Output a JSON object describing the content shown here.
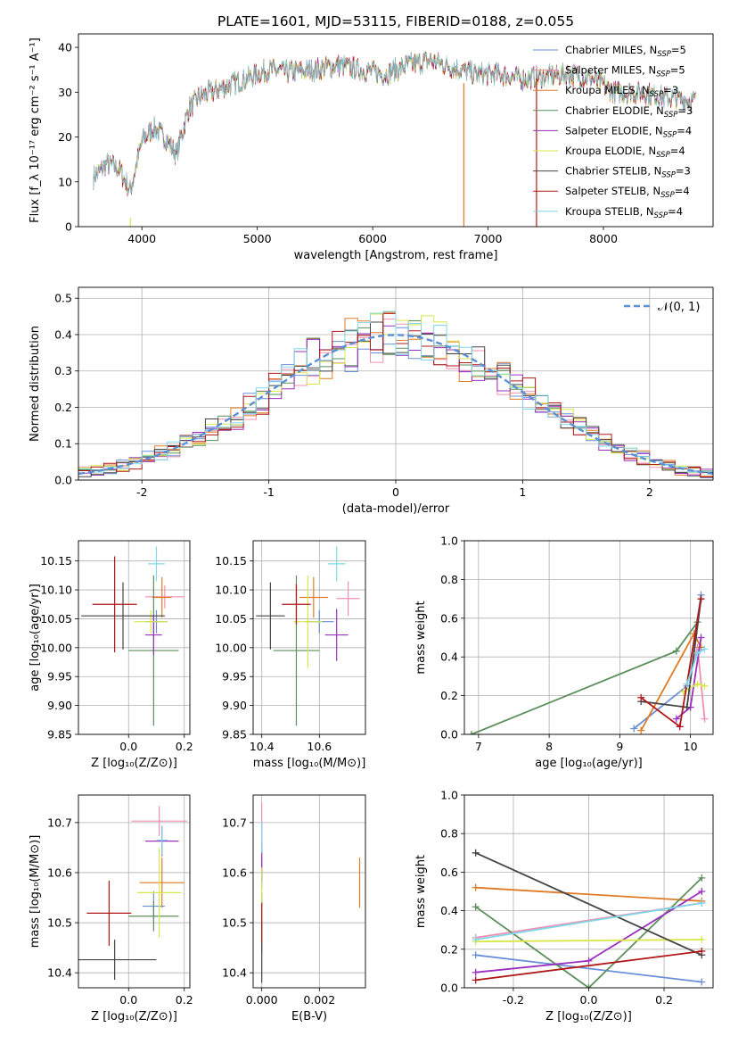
{
  "title": "PLATE=1601, MJD=53115, FIBERID=0188, z=0.055",
  "colors": [
    "#6a8fd8",
    "#f08fb4",
    "#e07b24",
    "#5b8f5b",
    "#9b30c0",
    "#d8e84a",
    "#454545",
    "#b01818",
    "#7fd8e8"
  ],
  "chart_data": [
    {
      "id": "spectrum",
      "type": "line",
      "xlabel": "wavelength [Angstrom, rest frame]",
      "ylabel": "Flux [f_λ 10⁻¹⁷ erg cm⁻² s⁻¹ A⁻¹]",
      "xlim": [
        3450,
        8950
      ],
      "ylim": [
        0,
        43
      ],
      "xticks": [
        4000,
        5000,
        6000,
        7000,
        8000
      ],
      "yticks": [
        0,
        10,
        20,
        30,
        40
      ],
      "grid": false,
      "legend_position": "upper-right",
      "series": [
        {
          "name": "Chabrier MILES, N_SSP=5"
        },
        {
          "name": "Salpeter MILES, N_SSP=5"
        },
        {
          "name": "Kroupa MILES, N_SSP=3"
        },
        {
          "name": "Chabrier ELODIE, N_SSP=3"
        },
        {
          "name": "Salpeter ELODIE, N_SSP=4"
        },
        {
          "name": "Kroupa ELODIE, N_SSP=4"
        },
        {
          "name": "Chabrier STELIB, N_SSP=3"
        },
        {
          "name": "Salpeter STELIB, N_SSP=4"
        },
        {
          "name": "Kroupa STELIB, N_SSP=4"
        }
      ],
      "continuum": {
        "x": [
          3580,
          3700,
          3800,
          3900,
          4000,
          4100,
          4200,
          4300,
          4400,
          4500,
          4700,
          4900,
          5100,
          5300,
          5500,
          5700,
          5900,
          6100,
          6300,
          6500,
          6700,
          6900,
          7100,
          7300,
          7500,
          7700,
          7900,
          8100,
          8300,
          8500,
          8800
        ],
        "y": [
          11,
          14,
          13,
          8,
          19,
          22,
          20,
          16,
          26,
          29,
          31,
          33,
          35,
          34.5,
          35,
          36,
          35,
          34,
          36,
          37,
          35.5,
          34,
          34,
          33,
          33.5,
          34,
          33,
          30,
          30,
          29,
          28
        ]
      },
      "spikes": [
        {
          "x": 3900,
          "y": 2
        },
        {
          "x": 6790,
          "y": 32
        },
        {
          "x": 7420,
          "y": 33
        }
      ]
    },
    {
      "id": "residuals",
      "type": "histogram",
      "xlabel": "(data-model)/error",
      "ylabel": "Normed distribution",
      "xlim": [
        -2.5,
        2.5
      ],
      "ylim": [
        0,
        0.53
      ],
      "xticks": [
        -2,
        -1,
        0,
        1,
        2
      ],
      "yticks": [
        0.0,
        0.1,
        0.2,
        0.3,
        0.4,
        0.5
      ],
      "grid": true,
      "bin_width": 0.1,
      "legend": "𝒩(0, 1)",
      "legend_position": "upper-right"
    },
    {
      "id": "age_vs_Z",
      "type": "scatter",
      "xlabel": "Z [log₁₀(Z/Z⊙)]",
      "ylabel": "age  [log₁₀(age/yr)]",
      "xlim": [
        -0.18,
        0.22
      ],
      "ylim": [
        9.85,
        10.185
      ],
      "xticks": [
        0.0,
        0.2
      ],
      "yticks": [
        9.85,
        9.9,
        9.95,
        10.0,
        10.05,
        10.1,
        10.15
      ],
      "grid": true,
      "points": [
        {
          "x": 0.1,
          "y": 10.045,
          "xerr": 0.04,
          "yerr": 0.02
        },
        {
          "x": 0.13,
          "y": 10.088,
          "xerr": 0.07,
          "yerr": 0.02
        },
        {
          "x": 0.12,
          "y": 10.087,
          "xerr": 0.035,
          "yerr": 0.035
        },
        {
          "x": 0.09,
          "y": 9.995,
          "xerr": 0.09,
          "yerr": 0.13
        },
        {
          "x": 0.09,
          "y": 10.022,
          "xerr": 0.03,
          "yerr": 0.035
        },
        {
          "x": 0.08,
          "y": 10.045,
          "xerr": 0.06,
          "yerr": 0.02
        },
        {
          "x": -0.02,
          "y": 10.055,
          "xerr": 0.15,
          "yerr": 0.058
        },
        {
          "x": -0.05,
          "y": 10.075,
          "xerr": 0.08,
          "yerr": 0.083
        },
        {
          "x": 0.1,
          "y": 10.145,
          "xerr": 0.03,
          "yerr": 0.03
        }
      ]
    },
    {
      "id": "age_vs_mass",
      "type": "scatter",
      "xlabel": "mass [log₁₀(M/M⊙)]",
      "ylabel": "",
      "xlim": [
        10.37,
        10.76
      ],
      "ylim": [
        9.85,
        10.185
      ],
      "xticks": [
        10.4,
        10.6
      ],
      "yticks": [
        9.85,
        9.9,
        9.95,
        10.0,
        10.05,
        10.1,
        10.15
      ],
      "grid": true,
      "points": [
        {
          "x": 10.6,
          "y": 10.045,
          "xerr": 0.05,
          "yerr": 0.02
        },
        {
          "x": 10.7,
          "y": 10.085,
          "xerr": 0.04,
          "yerr": 0.03
        },
        {
          "x": 10.58,
          "y": 10.087,
          "xerr": 0.05,
          "yerr": 0.035
        },
        {
          "x": 10.52,
          "y": 9.995,
          "xerr": 0.08,
          "yerr": 0.13
        },
        {
          "x": 10.66,
          "y": 10.022,
          "xerr": 0.04,
          "yerr": 0.045
        },
        {
          "x": 10.56,
          "y": 10.045,
          "xerr": 0.05,
          "yerr": 0.08
        },
        {
          "x": 10.43,
          "y": 10.055,
          "xerr": 0.05,
          "yerr": 0.058
        },
        {
          "x": 10.52,
          "y": 10.075,
          "xerr": 0.05,
          "yerr": 0.035
        },
        {
          "x": 10.66,
          "y": 10.145,
          "xerr": 0.03,
          "yerr": 0.03
        }
      ]
    },
    {
      "id": "weight_vs_age",
      "type": "line",
      "xlabel": "age  [log₁₀(age/yr)]",
      "ylabel": "mass weight",
      "xlim": [
        6.8,
        10.32
      ],
      "ylim": [
        0,
        1
      ],
      "xticks": [
        7,
        8,
        9,
        10
      ],
      "yticks": [
        0.0,
        0.2,
        0.4,
        0.6,
        0.8,
        1.0
      ],
      "grid": true,
      "series": [
        {
          "x": [
            9.2,
            9.95,
            10.15
          ],
          "y": [
            0.03,
            0.25,
            0.72
          ]
        },
        {
          "x": [
            9.95,
            10.1,
            10.2
          ],
          "y": [
            0.26,
            0.45,
            0.08
          ]
        },
        {
          "x": [
            9.3,
            10.05,
            10.15
          ],
          "y": [
            0.02,
            0.52,
            0.45
          ]
        },
        {
          "x": [
            6.9,
            9.8,
            10.1
          ],
          "y": [
            0.0,
            0.43,
            0.58
          ]
        },
        {
          "x": [
            9.8,
            10.0,
            10.15
          ],
          "y": [
            0.08,
            0.14,
            0.5
          ]
        },
        {
          "x": [
            9.9,
            10.1,
            10.2
          ],
          "y": [
            0.22,
            0.26,
            0.25
          ]
        },
        {
          "x": [
            9.3,
            9.95,
            10.15
          ],
          "y": [
            0.17,
            0.14,
            0.7
          ]
        },
        {
          "x": [
            9.3,
            9.85,
            10.15
          ],
          "y": [
            0.19,
            0.04,
            0.7
          ]
        },
        {
          "x": [
            9.95,
            10.1,
            10.2
          ],
          "y": [
            0.26,
            0.42,
            0.44
          ]
        }
      ]
    },
    {
      "id": "mass_vs_Z",
      "type": "scatter",
      "xlabel": "Z [log₁₀(Z/Z⊙)]",
      "ylabel": "mass [log₁₀(M/M⊙)]",
      "xlim": [
        -0.18,
        0.22
      ],
      "ylim": [
        10.37,
        10.755
      ],
      "xticks": [
        0.0,
        0.2
      ],
      "yticks": [
        10.4,
        10.5,
        10.6,
        10.7
      ],
      "grid": true,
      "points": [
        {
          "x": 0.09,
          "y": 10.533,
          "xerr": 0.04,
          "yerr": 0.03
        },
        {
          "x": 0.11,
          "y": 10.703,
          "xerr": 0.1,
          "yerr": 0.03
        },
        {
          "x": 0.12,
          "y": 10.58,
          "xerr": 0.08,
          "yerr": 0.05
        },
        {
          "x": 0.09,
          "y": 10.513,
          "xerr": 0.09,
          "yerr": 0.03
        },
        {
          "x": 0.12,
          "y": 10.663,
          "xerr": 0.06,
          "yerr": 0.03
        },
        {
          "x": 0.11,
          "y": 10.56,
          "xerr": 0.08,
          "yerr": 0.09
        },
        {
          "x": -0.05,
          "y": 10.426,
          "xerr": 0.15,
          "yerr": 0.04
        },
        {
          "x": -0.07,
          "y": 10.519,
          "xerr": 0.08,
          "yerr": 0.065
        },
        {
          "x": 0.12,
          "y": 10.665,
          "xerr": 0.02,
          "yerr": 0.03
        }
      ]
    },
    {
      "id": "mass_vs_EBV",
      "type": "scatter",
      "xlabel": "E(B-V)",
      "ylabel": "",
      "xlim": [
        -0.0003,
        0.0036
      ],
      "ylim": [
        10.37,
        10.755
      ],
      "xticks": [
        0.0,
        0.002
      ],
      "yticks": [
        10.4,
        10.5,
        10.6,
        10.7
      ],
      "grid": true,
      "points": [
        {
          "x": 0.0,
          "y": 10.6,
          "xerr": 0,
          "yerr": 0.03
        },
        {
          "x": 0.0,
          "y": 10.7,
          "xerr": 0,
          "yerr": 0.04
        },
        {
          "x": 0.0034,
          "y": 10.58,
          "xerr": 0,
          "yerr": 0.05
        },
        {
          "x": 0.0,
          "y": 10.5,
          "xerr": 0,
          "yerr": 0.06
        },
        {
          "x": 0.0,
          "y": 10.62,
          "xerr": 0,
          "yerr": 0.04
        },
        {
          "x": 0.0,
          "y": 10.56,
          "xerr": 0,
          "yerr": 0.05
        },
        {
          "x": 0.0,
          "y": 10.42,
          "xerr": 0,
          "yerr": 0.04
        },
        {
          "x": 0.0,
          "y": 10.5,
          "xerr": 0,
          "yerr": 0.04
        },
        {
          "x": 0.0,
          "y": 10.67,
          "xerr": 0,
          "yerr": 0.03
        }
      ]
    },
    {
      "id": "weight_vs_Z",
      "type": "line",
      "xlabel": "Z [log₁₀(Z/Z⊙)]",
      "ylabel": "mass weight",
      "xlim": [
        -0.33,
        0.33
      ],
      "ylim": [
        0,
        1
      ],
      "xticks": [
        -0.2,
        0.0,
        0.2
      ],
      "yticks": [
        0.0,
        0.2,
        0.4,
        0.6,
        0.8,
        1.0
      ],
      "grid": true,
      "series": [
        {
          "x": [
            -0.3,
            0.3
          ],
          "y": [
            0.17,
            0.03
          ]
        },
        {
          "x": [
            -0.3,
            0.3
          ],
          "y": [
            0.26,
            0.44
          ]
        },
        {
          "x": [
            -0.3,
            0.3
          ],
          "y": [
            0.52,
            0.45
          ]
        },
        {
          "x": [
            -0.3,
            0.0,
            0.3
          ],
          "y": [
            0.42,
            0.0,
            0.57
          ]
        },
        {
          "x": [
            -0.3,
            0.0,
            0.3
          ],
          "y": [
            0.08,
            0.14,
            0.5
          ]
        },
        {
          "x": [
            -0.3,
            0.3
          ],
          "y": [
            0.24,
            0.25
          ]
        },
        {
          "x": [
            -0.3,
            0.3
          ],
          "y": [
            0.7,
            0.17
          ]
        },
        {
          "x": [
            -0.3,
            0.3
          ],
          "y": [
            0.04,
            0.19
          ]
        },
        {
          "x": [
            -0.3,
            0.3
          ],
          "y": [
            0.25,
            0.44
          ]
        }
      ]
    }
  ]
}
